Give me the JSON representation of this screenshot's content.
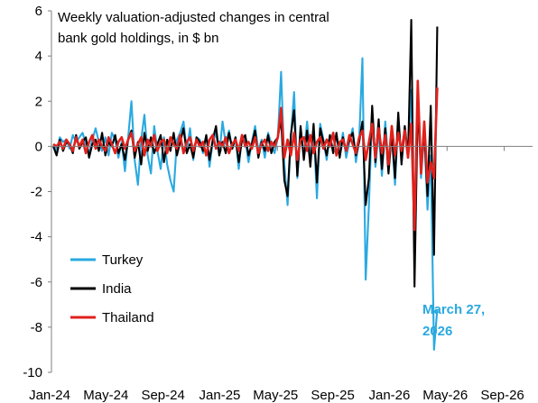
{
  "chart_data": {
    "type": "line",
    "title_lines": [
      "Weekly valuation-adjusted changes in central",
      "bank gold holdings, in $ bn"
    ],
    "xlabel": "",
    "ylabel": "",
    "ylim": [
      -10,
      6
    ],
    "yticks": [
      6,
      4,
      2,
      0,
      -2,
      -4,
      -6,
      -8,
      -10
    ],
    "x_tick_labels": [
      "Jan-24",
      "May-24",
      "Sep-24",
      "Jan-25",
      "May-25",
      "Sep-25",
      "Jan-26",
      "May-26",
      "Sep-26"
    ],
    "xlim": [
      "2024-01-01",
      "2026-11-01"
    ],
    "grid": false,
    "legend_position": "bottom-left",
    "annotation": {
      "lines": [
        "March 27,",
        "2026"
      ],
      "color": "#2aa9e0"
    },
    "series": [
      {
        "name": "Turkey",
        "color": "#2aa9e0",
        "start_date": "2024-01-05",
        "step_days": 7,
        "values": [
          0.1,
          -0.2,
          0.4,
          0.2,
          0.3,
          -0.1,
          0.5,
          0.2,
          0.4,
          0.6,
          0.1,
          -0.3,
          0.3,
          0.8,
          0.2,
          -0.2,
          0.4,
          -0.4,
          0.6,
          0.3,
          -0.5,
          0.2,
          -1.1,
          0.4,
          2.0,
          -0.6,
          -1.7,
          0.3,
          1.4,
          -0.4,
          -1.2,
          0.9,
          -0.2,
          -1.0,
          0.4,
          -0.8,
          -1.5,
          -2.0,
          0.3,
          0.6,
          1.1,
          -0.2,
          0.8,
          -0.6,
          0.4,
          0.3,
          -0.3,
          0.5,
          -0.9,
          0.2,
          0.6,
          -0.4,
          1.1,
          0.1,
          0.7,
          -0.1,
          0.4,
          -1.0,
          0.5,
          0.3,
          -0.7,
          0.2,
          0.9,
          -0.2,
          0.3,
          -0.5,
          0.6,
          0.1,
          -0.3,
          0.4,
          3.3,
          -0.8,
          -2.6,
          0.4,
          2.4,
          -1.4,
          0.7,
          -0.4,
          1.1,
          -0.5,
          0.8,
          -2.3,
          1.0,
          0.3,
          -0.6,
          0.5,
          -0.2,
          0.4,
          -0.3,
          0.6,
          -0.5,
          0.2,
          0.8,
          -0.7,
          0.3,
          3.9,
          -5.9,
          -2.6,
          1.5,
          -0.9,
          0.7,
          -1.3,
          1.1,
          -0.8,
          0.5,
          -1.7,
          1.2,
          -0.6,
          0.9,
          -0.3,
          2.5,
          -5.1,
          2.1,
          -1.4,
          0.6,
          -2.8,
          -0.4,
          -9.0,
          -7.2
        ]
      },
      {
        "name": "India",
        "color": "#000000",
        "start_date": "2024-01-05",
        "step_days": 7,
        "values": [
          0.0,
          -0.4,
          0.3,
          -0.2,
          0.2,
          0.1,
          -0.3,
          0.5,
          -0.1,
          0.2,
          0.4,
          -0.5,
          0.1,
          0.3,
          -0.2,
          0.6,
          -0.4,
          0.2,
          0.0,
          0.5,
          -0.3,
          0.1,
          -0.6,
          0.3,
          0.7,
          -0.5,
          0.2,
          -0.8,
          0.6,
          -0.2,
          0.4,
          -0.3,
          0.1,
          0.5,
          -0.7,
          0.3,
          -0.2,
          0.6,
          -0.4,
          0.2,
          0.8,
          -0.3,
          0.1,
          -0.5,
          0.4,
          0.2,
          -0.2,
          0.5,
          -0.6,
          0.3,
          0.9,
          -0.4,
          0.2,
          -0.3,
          0.6,
          -0.1,
          0.4,
          -0.7,
          0.3,
          0.5,
          -0.4,
          0.1,
          0.7,
          -0.5,
          0.2,
          -0.2,
          0.5,
          -0.3,
          0.2,
          0.4,
          1.2,
          -1.5,
          -2.2,
          0.5,
          1.6,
          -1.3,
          0.9,
          -0.6,
          0.7,
          -0.9,
          1.0,
          -1.6,
          0.8,
          0.2,
          -0.4,
          0.5,
          -0.3,
          0.6,
          -0.5,
          0.4,
          -0.2,
          0.3,
          0.6,
          -0.4,
          0.2,
          1.1,
          -2.6,
          -1.4,
          1.8,
          -0.7,
          1.2,
          -1.0,
          0.8,
          -1.2,
          0.6,
          -1.4,
          1.5,
          -0.8,
          0.9,
          -0.5,
          5.6,
          -6.2,
          1.9,
          -1.0,
          0.7,
          -2.2,
          1.8,
          -4.8,
          5.3
        ]
      },
      {
        "name": "Thailand",
        "color": "#e0211c",
        "start_date": "2024-01-05",
        "step_days": 7,
        "values": [
          0.1,
          0.0,
          0.2,
          -0.1,
          0.3,
          0.1,
          -0.2,
          0.4,
          0.0,
          0.3,
          -0.3,
          0.2,
          0.5,
          -0.1,
          0.3,
          0.0,
          -0.2,
          0.4,
          0.1,
          -0.3,
          0.2,
          0.4,
          -0.1,
          0.3,
          0.6,
          -0.2,
          0.1,
          0.4,
          -0.4,
          0.3,
          0.0,
          0.5,
          -0.2,
          0.2,
          0.3,
          -0.3,
          0.4,
          0.1,
          -0.1,
          0.5,
          -0.3,
          0.2,
          0.4,
          -0.2,
          0.3,
          0.0,
          0.2,
          -0.4,
          0.3,
          0.5,
          -0.1,
          0.2,
          0.0,
          0.4,
          -0.3,
          0.1,
          0.3,
          -0.2,
          0.5,
          0.0,
          0.2,
          -0.1,
          0.4,
          -0.3,
          0.1,
          0.3,
          -0.2,
          0.2,
          0.0,
          0.4,
          1.7,
          -0.5,
          0.3,
          -0.4,
          0.6,
          -0.6,
          0.3,
          0.4,
          -0.2,
          0.5,
          -0.3,
          0.2,
          0.4,
          -0.1,
          0.3,
          0.0,
          0.6,
          -0.4,
          0.2,
          0.3,
          -0.2,
          0.5,
          0.1,
          -0.3,
          0.4,
          0.7,
          -0.6,
          0.2,
          1.0,
          -0.5,
          0.8,
          -0.3,
          0.5,
          -0.8,
          0.9,
          -0.4,
          0.6,
          -0.2,
          0.7,
          -0.5,
          1.0,
          -3.7,
          2.9,
          -1.2,
          1.1,
          -1.6,
          -0.7,
          -1.4,
          2.6
        ]
      }
    ]
  }
}
